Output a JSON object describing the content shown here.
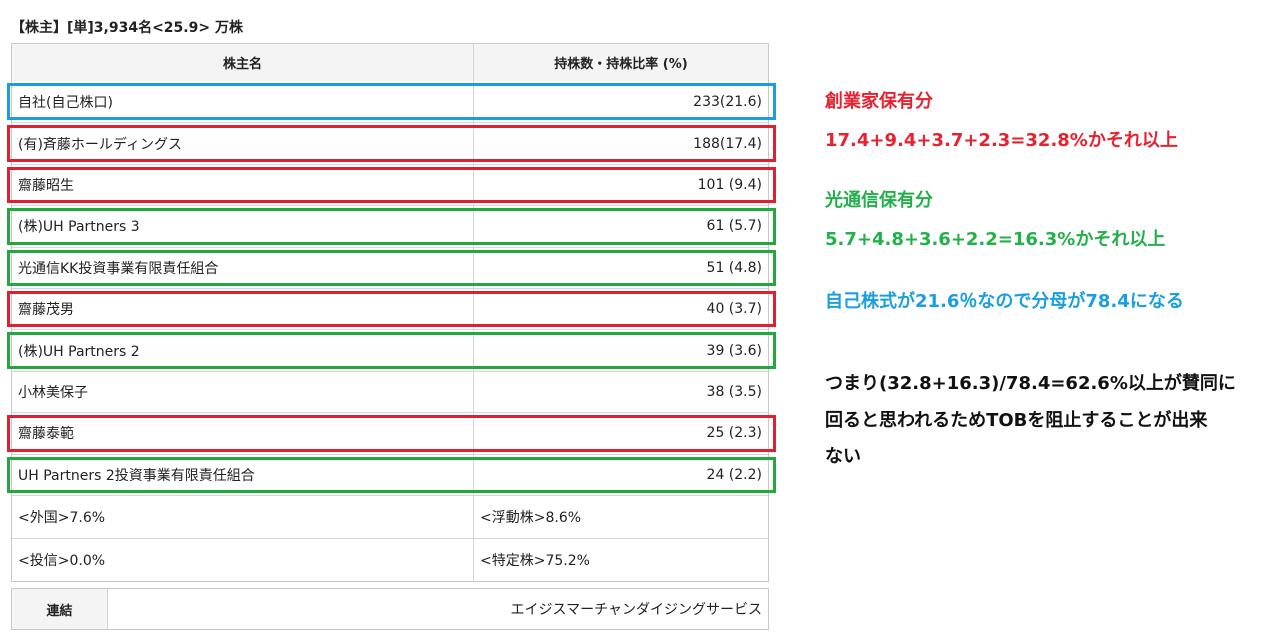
{
  "header": {
    "title": "【株主】[単]3,934名<25.9> 万株"
  },
  "table": {
    "columns": [
      "株主名",
      "持株数・持株比率 (%)"
    ],
    "rows": [
      [
        "自社(自己株口)",
        "233(21.6)"
      ],
      [
        "(有)斉藤ホールディングス",
        "188(17.4)"
      ],
      [
        "齋藤昭生",
        "101 (9.4)"
      ],
      [
        "(株)UH Partners 3",
        "61 (5.7)"
      ],
      [
        "光通信KK投資事業有限責任組合",
        "51 (4.8)"
      ],
      [
        "齋藤茂男",
        "40 (3.7)"
      ],
      [
        "(株)UH Partners 2",
        "39 (3.6)"
      ],
      [
        "小林美保子",
        "38 (3.5)"
      ],
      [
        "齋藤泰範",
        "25 (2.3)"
      ],
      [
        "UH Partners 2投資事業有限責任組合",
        "24 (2.2)"
      ]
    ],
    "footer": [
      [
        "<外国>7.6%",
        "<浮動株>8.6%"
      ],
      [
        "<投信>0.0%",
        "<特定株>75.2%"
      ]
    ]
  },
  "consolidated": {
    "label": "連結",
    "value": "エイジスマーチャンダイジングサービス"
  },
  "notes": {
    "founder_title": "創業家保有分",
    "founder_calc": "17.4+9.4+3.7+2.3=32.8%かそれ以上",
    "hikari_title": "光通信保有分",
    "hikari_calc": "5.7+4.8+3.6+2.2=16.3%かそれ以上",
    "treasury": "自己株式が21.6％なので分母が78.4になる",
    "conclusion": [
      "つまり(32.8+16.3)/78.4=62.6%以上が賛同に",
      "回ると思われるためTOBを阻止することが出来",
      "ない"
    ]
  }
}
